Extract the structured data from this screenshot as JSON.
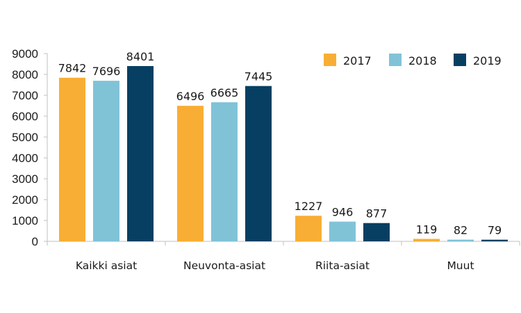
{
  "chart_data": {
    "type": "bar",
    "title": "",
    "xlabel": "",
    "ylabel": "",
    "categories": [
      "Kaikki asiat",
      "Neuvonta-asiat",
      "Riita-asiat",
      "Muut"
    ],
    "series": [
      {
        "name": "2017",
        "color": "#F8AE35",
        "values": [
          7842,
          6496,
          1227,
          119
        ]
      },
      {
        "name": "2018",
        "color": "#80C3D7",
        "values": [
          7696,
          6665,
          946,
          82
        ]
      },
      {
        "name": "2019",
        "color": "#073F63",
        "values": [
          8401,
          7445,
          877,
          79
        ]
      }
    ],
    "ylim": [
      0,
      9000
    ],
    "yticks": [
      "0",
      "1000",
      "2000",
      "3000",
      "4000",
      "5000",
      "6000",
      "7000",
      "8000",
      "9000"
    ],
    "grid": false,
    "legend": "top-right",
    "data_labels": true
  }
}
